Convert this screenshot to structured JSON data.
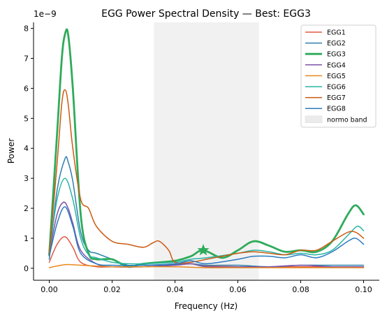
{
  "chart_data": {
    "type": "line",
    "title": "EGG Power Spectral Density — Best: EGG3",
    "xlabel": "Frequency (Hz)",
    "ylabel": "Power",
    "y_exponent_label": "1e−9",
    "xlim": [
      -0.005,
      0.105
    ],
    "ylim": [
      -0.4,
      8.2
    ],
    "x_ticks": [
      0.0,
      0.02,
      0.04,
      0.06,
      0.08,
      0.1
    ],
    "x_tick_labels": [
      "0.00",
      "0.02",
      "0.04",
      "0.06",
      "0.08",
      "0.10"
    ],
    "y_ticks": [
      0,
      1,
      2,
      3,
      4,
      5,
      6,
      7,
      8
    ],
    "y_tick_labels": [
      "0",
      "1",
      "2",
      "3",
      "4",
      "5",
      "6",
      "7",
      "8"
    ],
    "grid": false,
    "legend_position": "top-right",
    "band": {
      "label": "normo band",
      "x0": 0.0333,
      "x1": 0.0667,
      "color": "#ebebeb"
    },
    "best_marker": {
      "series": "EGG3",
      "x": 0.049,
      "y": 0.6,
      "shape": "star"
    },
    "series": [
      {
        "name": "EGG1",
        "color": "#e05a45",
        "width": 1.5,
        "points": [
          [
            0,
            0.2
          ],
          [
            0.0025,
            0.8
          ],
          [
            0.005,
            1.05
          ],
          [
            0.0075,
            0.7
          ],
          [
            0.01,
            0.2
          ],
          [
            0.015,
            0.05
          ],
          [
            0.02,
            0.05
          ],
          [
            0.03,
            0.05
          ],
          [
            0.04,
            0.1
          ],
          [
            0.045,
            0.15
          ],
          [
            0.05,
            0.08
          ],
          [
            0.06,
            0.05
          ],
          [
            0.07,
            0.05
          ],
          [
            0.08,
            0.05
          ],
          [
            0.09,
            0.05
          ],
          [
            0.1,
            0.05
          ]
        ]
      },
      {
        "name": "EGG2",
        "color": "#2e80ad",
        "width": 1.5,
        "points": [
          [
            0,
            0.3
          ],
          [
            0.0025,
            2.6
          ],
          [
            0.005,
            3.65
          ],
          [
            0.006,
            3.55
          ],
          [
            0.0075,
            2.9
          ],
          [
            0.01,
            1.2
          ],
          [
            0.0125,
            0.6
          ],
          [
            0.015,
            0.5
          ],
          [
            0.02,
            0.3
          ],
          [
            0.025,
            0.1
          ],
          [
            0.03,
            0.1
          ],
          [
            0.04,
            0.12
          ],
          [
            0.045,
            0.15
          ],
          [
            0.05,
            0.1
          ],
          [
            0.06,
            0.1
          ],
          [
            0.07,
            0.05
          ],
          [
            0.08,
            0.1
          ],
          [
            0.09,
            0.1
          ],
          [
            0.1,
            0.1
          ]
        ]
      },
      {
        "name": "EGG3",
        "color": "#2eab5a",
        "width": 2.8,
        "points": [
          [
            0,
            0.45
          ],
          [
            0.0025,
            4.5
          ],
          [
            0.004,
            7.0
          ],
          [
            0.005,
            7.8
          ],
          [
            0.006,
            7.8
          ],
          [
            0.0075,
            6.0
          ],
          [
            0.01,
            1.8
          ],
          [
            0.0125,
            0.5
          ],
          [
            0.015,
            0.3
          ],
          [
            0.02,
            0.3
          ],
          [
            0.025,
            0.05
          ],
          [
            0.03,
            0.15
          ],
          [
            0.04,
            0.25
          ],
          [
            0.045,
            0.4
          ],
          [
            0.049,
            0.6
          ],
          [
            0.055,
            0.35
          ],
          [
            0.06,
            0.6
          ],
          [
            0.065,
            0.9
          ],
          [
            0.07,
            0.75
          ],
          [
            0.075,
            0.55
          ],
          [
            0.08,
            0.6
          ],
          [
            0.085,
            0.55
          ],
          [
            0.09,
            0.9
          ],
          [
            0.095,
            1.8
          ],
          [
            0.0975,
            2.1
          ],
          [
            0.1,
            1.8
          ]
        ]
      },
      {
        "name": "EGG4",
        "color": "#7f51a8",
        "width": 1.5,
        "points": [
          [
            0,
            0.5
          ],
          [
            0.0025,
            1.8
          ],
          [
            0.0045,
            2.2
          ],
          [
            0.006,
            2.0
          ],
          [
            0.0075,
            1.5
          ],
          [
            0.01,
            0.6
          ],
          [
            0.015,
            0.15
          ],
          [
            0.02,
            0.05
          ],
          [
            0.03,
            0.05
          ],
          [
            0.04,
            0.1
          ],
          [
            0.045,
            0.15
          ],
          [
            0.05,
            0.05
          ],
          [
            0.06,
            0.05
          ],
          [
            0.07,
            0.05
          ],
          [
            0.08,
            0.1
          ],
          [
            0.09,
            0.05
          ],
          [
            0.1,
            0.05
          ]
        ]
      },
      {
        "name": "EGG5",
        "color": "#e8891e",
        "width": 1.5,
        "points": [
          [
            0,
            0.02
          ],
          [
            0.005,
            0.12
          ],
          [
            0.01,
            0.1
          ],
          [
            0.02,
            0.05
          ],
          [
            0.03,
            0.05
          ],
          [
            0.04,
            0.05
          ],
          [
            0.05,
            0.02
          ],
          [
            0.06,
            0.02
          ],
          [
            0.07,
            0.02
          ],
          [
            0.08,
            0.02
          ],
          [
            0.09,
            0.02
          ],
          [
            0.1,
            0.02
          ]
        ]
      },
      {
        "name": "EGG6",
        "color": "#28b5a4",
        "width": 1.5,
        "points": [
          [
            0,
            0.5
          ],
          [
            0.0025,
            2.3
          ],
          [
            0.005,
            3.0
          ],
          [
            0.0075,
            2.3
          ],
          [
            0.01,
            1.0
          ],
          [
            0.0125,
            0.45
          ],
          [
            0.015,
            0.35
          ],
          [
            0.02,
            0.2
          ],
          [
            0.025,
            0.15
          ],
          [
            0.03,
            0.15
          ],
          [
            0.04,
            0.2
          ],
          [
            0.045,
            0.3
          ],
          [
            0.05,
            0.35
          ],
          [
            0.06,
            0.5
          ],
          [
            0.065,
            0.6
          ],
          [
            0.07,
            0.55
          ],
          [
            0.075,
            0.45
          ],
          [
            0.08,
            0.5
          ],
          [
            0.085,
            0.45
          ],
          [
            0.09,
            0.6
          ],
          [
            0.095,
            1.1
          ],
          [
            0.098,
            1.4
          ],
          [
            0.1,
            1.25
          ]
        ]
      },
      {
        "name": "EGG7",
        "color": "#cc5a10",
        "width": 1.5,
        "points": [
          [
            0,
            0.45
          ],
          [
            0.0025,
            3.5
          ],
          [
            0.004,
            5.5
          ],
          [
            0.005,
            5.95
          ],
          [
            0.006,
            5.5
          ],
          [
            0.0075,
            4.0
          ],
          [
            0.01,
            2.3
          ],
          [
            0.0125,
            2.0
          ],
          [
            0.015,
            1.4
          ],
          [
            0.02,
            0.9
          ],
          [
            0.025,
            0.8
          ],
          [
            0.03,
            0.7
          ],
          [
            0.033,
            0.85
          ],
          [
            0.035,
            0.9
          ],
          [
            0.038,
            0.6
          ],
          [
            0.04,
            0.2
          ],
          [
            0.045,
            0.2
          ],
          [
            0.05,
            0.3
          ],
          [
            0.055,
            0.4
          ],
          [
            0.06,
            0.5
          ],
          [
            0.065,
            0.55
          ],
          [
            0.07,
            0.5
          ],
          [
            0.075,
            0.45
          ],
          [
            0.08,
            0.6
          ],
          [
            0.085,
            0.6
          ],
          [
            0.09,
            0.9
          ],
          [
            0.095,
            1.2
          ],
          [
            0.0975,
            1.2
          ],
          [
            0.1,
            1.0
          ]
        ]
      },
      {
        "name": "EGG8",
        "color": "#2b7bbf",
        "width": 1.5,
        "points": [
          [
            0,
            0.4
          ],
          [
            0.0025,
            1.5
          ],
          [
            0.005,
            2.05
          ],
          [
            0.0075,
            1.4
          ],
          [
            0.01,
            0.5
          ],
          [
            0.015,
            0.15
          ],
          [
            0.02,
            0.1
          ],
          [
            0.03,
            0.1
          ],
          [
            0.04,
            0.15
          ],
          [
            0.045,
            0.25
          ],
          [
            0.05,
            0.15
          ],
          [
            0.06,
            0.3
          ],
          [
            0.065,
            0.4
          ],
          [
            0.07,
            0.4
          ],
          [
            0.075,
            0.35
          ],
          [
            0.08,
            0.45
          ],
          [
            0.085,
            0.35
          ],
          [
            0.09,
            0.55
          ],
          [
            0.095,
            0.9
          ],
          [
            0.0975,
            1.0
          ],
          [
            0.1,
            0.8
          ]
        ]
      }
    ]
  }
}
